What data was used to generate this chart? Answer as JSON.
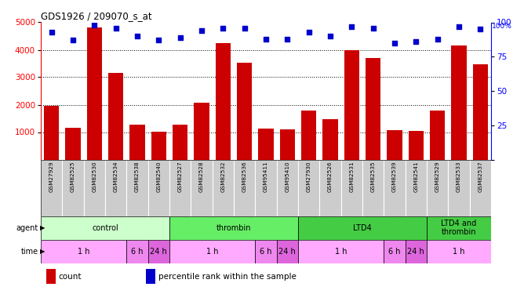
{
  "title": "GDS1926 / 209070_s_at",
  "samples": [
    "GSM27929",
    "GSM82525",
    "GSM82530",
    "GSM82534",
    "GSM82538",
    "GSM82540",
    "GSM82527",
    "GSM82528",
    "GSM82532",
    "GSM82536",
    "GSM95411",
    "GSM95410",
    "GSM27930",
    "GSM82526",
    "GSM82531",
    "GSM82535",
    "GSM82539",
    "GSM82541",
    "GSM82529",
    "GSM82533",
    "GSM82537"
  ],
  "counts": [
    1950,
    1150,
    4820,
    3150,
    1280,
    1020,
    1280,
    2060,
    4230,
    3520,
    1130,
    1110,
    1800,
    1480,
    4000,
    3700,
    1060,
    1030,
    1800,
    4160,
    3480
  ],
  "percentiles": [
    93,
    87,
    98,
    96,
    90,
    87,
    89,
    94,
    96,
    96,
    88,
    88,
    93,
    90,
    97,
    96,
    85,
    86,
    88,
    97,
    95
  ],
  "ylim_left": [
    0,
    5000
  ],
  "ylim_right": [
    0,
    100
  ],
  "yticks_left": [
    1000,
    2000,
    3000,
    4000,
    5000
  ],
  "yticks_right": [
    0,
    25,
    50,
    75,
    100
  ],
  "bar_color": "#cc0000",
  "dot_color": "#0000cc",
  "agent_groups": [
    {
      "label": "control",
      "start": 0,
      "end": 6,
      "color": "#ccffcc"
    },
    {
      "label": "thrombin",
      "start": 6,
      "end": 12,
      "color": "#66ee66"
    },
    {
      "label": "LTD4",
      "start": 12,
      "end": 18,
      "color": "#44cc44"
    },
    {
      "label": "LTD4 and\nthrombin",
      "start": 18,
      "end": 21,
      "color": "#44cc44"
    }
  ],
  "time_groups": [
    {
      "label": "1 h",
      "start": 0,
      "end": 4,
      "color": "#ffaaff"
    },
    {
      "label": "6 h",
      "start": 4,
      "end": 5,
      "color": "#ee88ee"
    },
    {
      "label": "24 h",
      "start": 5,
      "end": 6,
      "color": "#dd66dd"
    },
    {
      "label": "1 h",
      "start": 6,
      "end": 10,
      "color": "#ffaaff"
    },
    {
      "label": "6 h",
      "start": 10,
      "end": 11,
      "color": "#ee88ee"
    },
    {
      "label": "24 h",
      "start": 11,
      "end": 12,
      "color": "#dd66dd"
    },
    {
      "label": "1 h",
      "start": 12,
      "end": 16,
      "color": "#ffaaff"
    },
    {
      "label": "6 h",
      "start": 16,
      "end": 17,
      "color": "#ee88ee"
    },
    {
      "label": "24 h",
      "start": 17,
      "end": 18,
      "color": "#dd66dd"
    },
    {
      "label": "1 h",
      "start": 18,
      "end": 21,
      "color": "#ffaaff"
    }
  ],
  "legend_items": [
    {
      "label": "count",
      "color": "#cc0000"
    },
    {
      "label": "percentile rank within the sample",
      "color": "#0000cc"
    }
  ],
  "tick_label_bg": "#cccccc",
  "n_samples": 21
}
